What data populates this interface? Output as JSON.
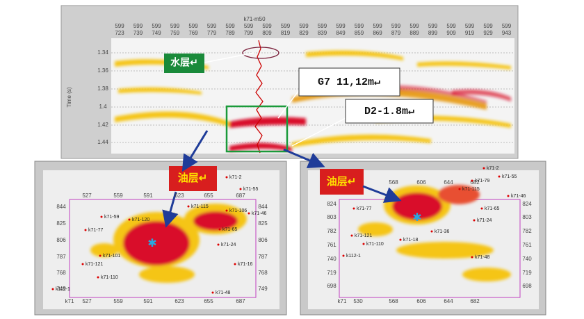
{
  "section": {
    "well_label": "k71-m50",
    "y_axis_title": "Time (s)",
    "columns": [
      {
        "top": "599",
        "bottom": "723"
      },
      {
        "top": "599",
        "bottom": "739"
      },
      {
        "top": "599",
        "bottom": "749"
      },
      {
        "top": "599",
        "bottom": "759"
      },
      {
        "top": "599",
        "bottom": "769"
      },
      {
        "top": "599",
        "bottom": "779"
      },
      {
        "top": "599",
        "bottom": "789"
      },
      {
        "top": "599",
        "bottom": "799"
      },
      {
        "top": "599",
        "bottom": "809"
      },
      {
        "top": "599",
        "bottom": "819"
      },
      {
        "top": "599",
        "bottom": "829"
      },
      {
        "top": "599",
        "bottom": "839"
      },
      {
        "top": "599",
        "bottom": "849"
      },
      {
        "top": "599",
        "bottom": "859"
      },
      {
        "top": "599",
        "bottom": "869"
      },
      {
        "top": "599",
        "bottom": "879"
      },
      {
        "top": "599",
        "bottom": "889"
      },
      {
        "top": "599",
        "bottom": "899"
      },
      {
        "top": "599",
        "bottom": "909"
      },
      {
        "top": "599",
        "bottom": "919"
      },
      {
        "top": "599",
        "bottom": "929"
      },
      {
        "top": "599",
        "bottom": "943"
      }
    ],
    "y_ticks": [
      "1.34",
      "1.36",
      "1.38",
      "1.4",
      "1.42",
      "1.44"
    ]
  },
  "callouts": {
    "water": "水层↵",
    "g7": "G7  11,12m↵",
    "d2": "D2-1.8m↵",
    "oil_left": "油层↵",
    "oil_right": "油层↵"
  },
  "maps": [
    {
      "x_ticks_top": [
        "527",
        "559",
        "591",
        "623",
        "655",
        "687"
      ],
      "x_ticks_bottom": [
        "k71",
        "527",
        "559",
        "591",
        "623",
        "655",
        "687"
      ],
      "y_ticks": [
        "844",
        "825",
        "806",
        "787",
        "768",
        "749"
      ],
      "wells": [
        "k71-2",
        "k71-55",
        "k71-59",
        "k71-120",
        "k71-115",
        "k71-106",
        "k71-77",
        "k71-101",
        "k71-121",
        "k71-110",
        "k71-24",
        "k71-16",
        "k71-48",
        "k112-1",
        "k71-65",
        "k71-46"
      ]
    },
    {
      "x_ticks_top": [
        "568",
        "606",
        "644",
        "682"
      ],
      "x_ticks_bottom": [
        "k71",
        "530",
        "568",
        "606",
        "644",
        "682"
      ],
      "y_ticks": [
        "824",
        "803",
        "782",
        "761",
        "740",
        "719",
        "698"
      ],
      "wells": [
        "k71-2",
        "k71-55",
        "k71-79",
        "k71-115",
        "k71-77",
        "k71-65",
        "k71-24",
        "k71-121",
        "k71-110",
        "k71-36",
        "k71-18",
        "k71-48",
        "k112-1",
        "k71-46"
      ]
    }
  ]
}
